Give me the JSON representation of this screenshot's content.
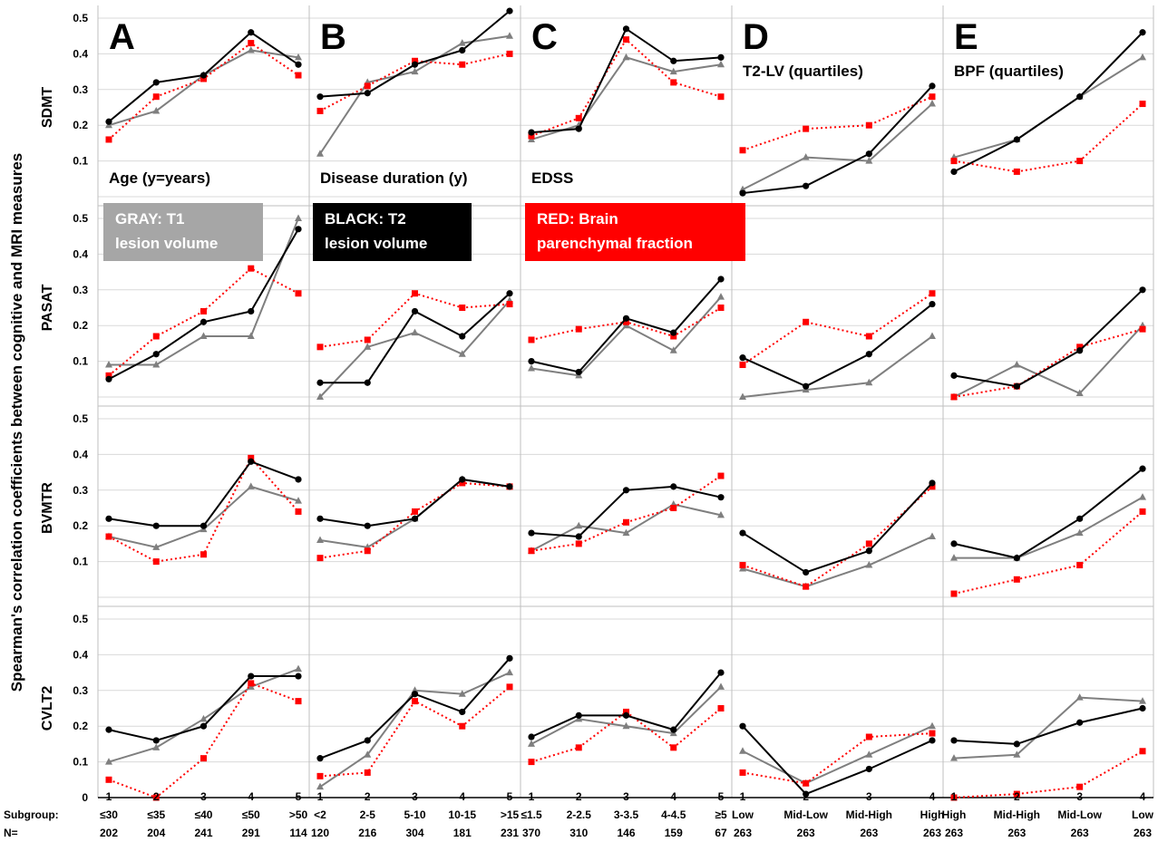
{
  "figure": {
    "y_axis_label": "Spearman's  correlation coefficients between cognitive and MRI measures",
    "ticks": [
      "0",
      "0.1",
      "0.2",
      "0.3",
      "0.4",
      "0.5"
    ],
    "row_labels": [
      "SDMT",
      "PASAT",
      "BVMTR",
      "CVLT2"
    ],
    "subgroup_label": "Subgroup:",
    "n_label": "N=",
    "legend": [
      {
        "text_line1": "GRAY: T1",
        "text_line2": "lesion volume",
        "color": "#a6a6a6"
      },
      {
        "text_line1": "BLACK: T2",
        "text_line2": "lesion volume",
        "color": "#000000"
      },
      {
        "text_line1": "RED: Brain",
        "text_line2": "parenchymal fraction",
        "color": "#ff0000"
      }
    ],
    "colors": {
      "gray": "#7f7f7f",
      "black": "#000000",
      "red": "#ff0000",
      "grid": "#d9d9d9"
    }
  },
  "chart_data": [
    {
      "type": "line",
      "panel": "A",
      "sublabel": "Age (y=years)",
      "x": [
        "1",
        "2",
        "3",
        "4",
        "5"
      ],
      "subgroups": [
        "≤30",
        "≤35",
        "≤40",
        "≤50",
        ">50"
      ],
      "n": [
        "202",
        "204",
        "241",
        "291",
        "114"
      ],
      "ylim": [
        0,
        0.5
      ],
      "rows": {
        "SDMT": {
          "T1": [
            0.2,
            0.24,
            0.34,
            0.41,
            0.39
          ],
          "T2": [
            0.21,
            0.32,
            0.34,
            0.46,
            0.37
          ],
          "BPF": [
            0.16,
            0.28,
            0.33,
            0.43,
            0.34
          ]
        },
        "PASAT": {
          "T1": [
            0.09,
            0.09,
            0.17,
            0.17,
            0.5
          ],
          "T2": [
            0.05,
            0.12,
            0.21,
            0.24,
            0.47
          ],
          "BPF": [
            0.06,
            0.17,
            0.24,
            0.36,
            0.29
          ]
        },
        "BVMTR": {
          "T1": [
            0.17,
            0.14,
            0.19,
            0.31,
            0.27
          ],
          "T2": [
            0.22,
            0.2,
            0.2,
            0.38,
            0.33
          ],
          "BPF": [
            0.17,
            0.1,
            0.12,
            0.39,
            0.24
          ]
        },
        "CVLT2": {
          "T1": [
            0.1,
            0.14,
            0.22,
            0.31,
            0.36
          ],
          "T2": [
            0.19,
            0.16,
            0.2,
            0.34,
            0.34
          ],
          "BPF": [
            0.05,
            0.0,
            0.11,
            0.32,
            0.27
          ]
        }
      }
    },
    {
      "type": "line",
      "panel": "B",
      "sublabel": "Disease duration (y)",
      "x": [
        "1",
        "2",
        "3",
        "4",
        "5"
      ],
      "subgroups": [
        "<2",
        "2-5",
        "5-10",
        "10-15",
        ">15"
      ],
      "n": [
        "120",
        "216",
        "304",
        "181",
        "231"
      ],
      "ylim": [
        0,
        0.5
      ],
      "rows": {
        "SDMT": {
          "T1": [
            0.12,
            0.32,
            0.35,
            0.43,
            0.45
          ],
          "T2": [
            0.28,
            0.29,
            0.37,
            0.41,
            0.52
          ],
          "BPF": [
            0.24,
            0.31,
            0.38,
            0.37,
            0.4
          ]
        },
        "PASAT": {
          "T1": [
            0.0,
            0.14,
            0.18,
            0.12,
            0.27
          ],
          "T2": [
            0.04,
            0.04,
            0.24,
            0.17,
            0.29
          ],
          "BPF": [
            0.14,
            0.16,
            0.29,
            0.25,
            0.26
          ]
        },
        "BVMTR": {
          "T1": [
            0.16,
            0.14,
            0.22,
            0.33,
            0.31
          ],
          "T2": [
            0.22,
            0.2,
            0.22,
            0.33,
            0.31
          ],
          "BPF": [
            0.11,
            0.13,
            0.24,
            0.32,
            0.31
          ]
        },
        "CVLT2": {
          "T1": [
            0.03,
            0.12,
            0.3,
            0.29,
            0.35
          ],
          "T2": [
            0.11,
            0.16,
            0.29,
            0.24,
            0.39
          ],
          "BPF": [
            0.06,
            0.07,
            0.27,
            0.2,
            0.31
          ]
        }
      }
    },
    {
      "type": "line",
      "panel": "C",
      "sublabel": "EDSS",
      "x": [
        "1",
        "2",
        "3",
        "4",
        "5"
      ],
      "subgroups": [
        "≤1.5",
        "2-2.5",
        "3-3.5",
        "4-4.5",
        "≥5"
      ],
      "n": [
        "370",
        "310",
        "146",
        "159",
        "67"
      ],
      "ylim": [
        0,
        0.5
      ],
      "rows": {
        "SDMT": {
          "T1": [
            0.16,
            0.2,
            0.39,
            0.35,
            0.37
          ],
          "T2": [
            0.18,
            0.19,
            0.47,
            0.38,
            0.39
          ],
          "BPF": [
            0.17,
            0.22,
            0.44,
            0.32,
            0.28
          ]
        },
        "PASAT": {
          "T1": [
            0.08,
            0.06,
            0.2,
            0.13,
            0.28
          ],
          "T2": [
            0.1,
            0.07,
            0.22,
            0.18,
            0.33
          ],
          "BPF": [
            0.16,
            0.19,
            0.21,
            0.17,
            0.25
          ]
        },
        "BVMTR": {
          "T1": [
            0.13,
            0.2,
            0.18,
            0.26,
            0.23
          ],
          "T2": [
            0.18,
            0.17,
            0.3,
            0.31,
            0.28
          ],
          "BPF": [
            0.13,
            0.15,
            0.21,
            0.25,
            0.34
          ]
        },
        "CVLT2": {
          "T1": [
            0.15,
            0.22,
            0.2,
            0.18,
            0.31
          ],
          "T2": [
            0.17,
            0.23,
            0.23,
            0.19,
            0.35
          ],
          "BPF": [
            0.1,
            0.14,
            0.24,
            0.14,
            0.25
          ]
        }
      }
    },
    {
      "type": "line",
      "panel": "D",
      "sublabel": "T2-LV (quartiles)",
      "x": [
        "1",
        "2",
        "3",
        "4"
      ],
      "subgroups": [
        "Low",
        "Mid-Low",
        "Mid-High",
        "High"
      ],
      "n": [
        "263",
        "263",
        "263",
        "263"
      ],
      "ylim": [
        0,
        0.5
      ],
      "rows": {
        "SDMT": {
          "T1": [
            0.02,
            0.11,
            0.1,
            0.26
          ],
          "T2": [
            0.01,
            0.03,
            0.12,
            0.31
          ],
          "BPF": [
            0.13,
            0.19,
            0.2,
            0.28
          ]
        },
        "PASAT": {
          "T1": [
            0.0,
            0.02,
            0.04,
            0.17
          ],
          "T2": [
            0.11,
            0.03,
            0.12,
            0.26
          ],
          "BPF": [
            0.09,
            0.21,
            0.17,
            0.29
          ]
        },
        "BVMTR": {
          "T1": [
            0.08,
            0.03,
            0.09,
            0.17
          ],
          "T2": [
            0.18,
            0.07,
            0.13,
            0.32
          ],
          "BPF": [
            0.09,
            0.03,
            0.15,
            0.31
          ]
        },
        "CVLT2": {
          "T1": [
            0.13,
            0.04,
            0.12,
            0.2
          ],
          "T2": [
            0.2,
            0.01,
            0.08,
            0.16
          ],
          "BPF": [
            0.07,
            0.04,
            0.17,
            0.18
          ]
        }
      }
    },
    {
      "type": "line",
      "panel": "E",
      "sublabel": "BPF (quartiles)",
      "x": [
        "1",
        "2",
        "3",
        "4"
      ],
      "subgroups": [
        "High",
        "Mid-High",
        "Mid-Low",
        "Low"
      ],
      "n": [
        "263",
        "263",
        "263",
        "263"
      ],
      "ylim": [
        0,
        0.5
      ],
      "rows": {
        "SDMT": {
          "T1": [
            0.11,
            0.16,
            0.28,
            0.39
          ],
          "T2": [
            0.07,
            0.16,
            0.28,
            0.46
          ],
          "BPF": [
            0.1,
            0.07,
            0.1,
            0.26
          ]
        },
        "PASAT": {
          "T1": [
            0.0,
            0.09,
            0.01,
            0.2
          ],
          "T2": [
            0.06,
            0.03,
            0.13,
            0.3
          ],
          "BPF": [
            0.0,
            0.03,
            0.14,
            0.19
          ]
        },
        "BVMTR": {
          "T1": [
            0.11,
            0.11,
            0.18,
            0.28
          ],
          "T2": [
            0.15,
            0.11,
            0.22,
            0.36
          ],
          "BPF": [
            0.01,
            0.05,
            0.09,
            0.24
          ]
        },
        "CVLT2": {
          "T1": [
            0.11,
            0.12,
            0.28,
            0.27
          ],
          "T2": [
            0.16,
            0.15,
            0.21,
            0.25
          ],
          "BPF": [
            0.0,
            0.01,
            0.03,
            0.13
          ]
        }
      }
    }
  ]
}
